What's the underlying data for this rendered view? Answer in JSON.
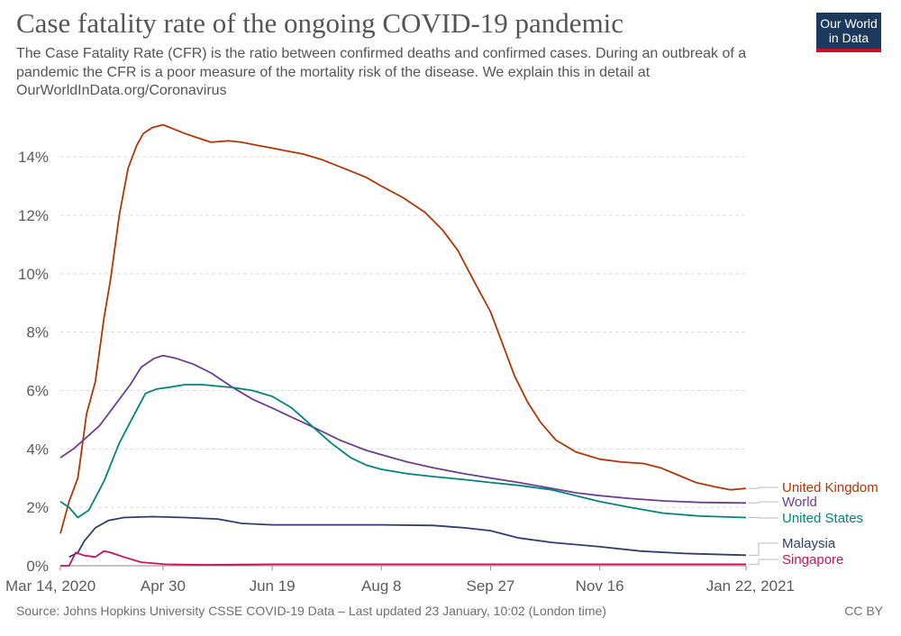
{
  "header": {
    "title": "Case fatality rate of the ongoing COVID-19 pandemic",
    "subtitle": "The Case Fatality Rate (CFR) is the ratio between confirmed deaths and confirmed cases. During an outbreak of a pandemic the CFR is a poor measure of the mortality risk of the disease. We explain this in detail at OurWorldInData.org/Coronavirus",
    "logo_line1": "Our World",
    "logo_line2": "in Data"
  },
  "footer": {
    "source": "Source: Johns Hopkins University CSSE COVID-19 Data – Last updated 23 January, 10:02 (London time)",
    "license": "CC BY"
  },
  "colors": {
    "uk": "#b13507",
    "world": "#6d3e91",
    "us": "#00847e",
    "malaysia": "#2d3e6b",
    "singapore": "#c4145f",
    "grid": "#dddddd",
    "logo_bg": "#1b3a5e",
    "logo_accent": "#c8102e"
  },
  "chart_data": {
    "type": "line",
    "x_start": "2020-03-14",
    "x_end": "2021-01-22",
    "x_ticks": [
      {
        "date": "2020-03-14",
        "label": "Mar 14, 2020"
      },
      {
        "date": "2020-04-30",
        "label": "Apr 30"
      },
      {
        "date": "2020-06-19",
        "label": "Jun 19"
      },
      {
        "date": "2020-08-08",
        "label": "Aug 8"
      },
      {
        "date": "2020-09-27",
        "label": "Sep 27"
      },
      {
        "date": "2020-11-16",
        "label": "Nov 16"
      },
      {
        "date": "2021-01-22",
        "label": "Jan 22, 2021"
      }
    ],
    "y_ticks": [
      {
        "value": 0,
        "label": "0%"
      },
      {
        "value": 2,
        "label": "2%"
      },
      {
        "value": 4,
        "label": "4%"
      },
      {
        "value": 6,
        "label": "6%"
      },
      {
        "value": 8,
        "label": "8%"
      },
      {
        "value": 10,
        "label": "10%"
      },
      {
        "value": 12,
        "label": "12%"
      },
      {
        "value": 14,
        "label": "14%"
      }
    ],
    "ylim": [
      0,
      15.3
    ],
    "grid": true,
    "series": [
      {
        "key": "uk",
        "name": "United Kingdom",
        "color": "#b13507",
        "points": [
          [
            "2020-03-14",
            1.1
          ],
          [
            "2020-03-18",
            2.2
          ],
          [
            "2020-03-22",
            3.0
          ],
          [
            "2020-03-26",
            5.2
          ],
          [
            "2020-03-30",
            6.3
          ],
          [
            "2020-04-03",
            8.5
          ],
          [
            "2020-04-06",
            9.8
          ],
          [
            "2020-04-10",
            12.0
          ],
          [
            "2020-04-14",
            13.6
          ],
          [
            "2020-04-18",
            14.4
          ],
          [
            "2020-04-21",
            14.8
          ],
          [
            "2020-04-25",
            15.0
          ],
          [
            "2020-04-30",
            15.1
          ],
          [
            "2020-05-05",
            14.95
          ],
          [
            "2020-05-10",
            14.8
          ],
          [
            "2020-05-16",
            14.65
          ],
          [
            "2020-05-22",
            14.5
          ],
          [
            "2020-05-30",
            14.55
          ],
          [
            "2020-06-05",
            14.5
          ],
          [
            "2020-06-12",
            14.4
          ],
          [
            "2020-06-19",
            14.3
          ],
          [
            "2020-06-26",
            14.2
          ],
          [
            "2020-07-03",
            14.1
          ],
          [
            "2020-07-12",
            13.9
          ],
          [
            "2020-07-22",
            13.6
          ],
          [
            "2020-08-01",
            13.3
          ],
          [
            "2020-08-08",
            13.0
          ],
          [
            "2020-08-18",
            12.6
          ],
          [
            "2020-08-28",
            12.1
          ],
          [
            "2020-09-05",
            11.5
          ],
          [
            "2020-09-12",
            10.8
          ],
          [
            "2020-09-19",
            9.8
          ],
          [
            "2020-09-27",
            8.7
          ],
          [
            "2020-10-03",
            7.5
          ],
          [
            "2020-10-08",
            6.5
          ],
          [
            "2020-10-14",
            5.6
          ],
          [
            "2020-10-20",
            4.9
          ],
          [
            "2020-10-27",
            4.3
          ],
          [
            "2020-11-05",
            3.9
          ],
          [
            "2020-11-16",
            3.65
          ],
          [
            "2020-11-26",
            3.55
          ],
          [
            "2020-12-06",
            3.5
          ],
          [
            "2020-12-14",
            3.35
          ],
          [
            "2020-12-22",
            3.1
          ],
          [
            "2020-12-30",
            2.85
          ],
          [
            "2021-01-08",
            2.7
          ],
          [
            "2021-01-15",
            2.6
          ],
          [
            "2021-01-22",
            2.65
          ]
        ]
      },
      {
        "key": "world",
        "name": "World",
        "color": "#6d3e91",
        "points": [
          [
            "2020-03-14",
            3.7
          ],
          [
            "2020-03-20",
            4.0
          ],
          [
            "2020-03-26",
            4.4
          ],
          [
            "2020-04-01",
            4.8
          ],
          [
            "2020-04-08",
            5.5
          ],
          [
            "2020-04-15",
            6.2
          ],
          [
            "2020-04-20",
            6.8
          ],
          [
            "2020-04-26",
            7.1
          ],
          [
            "2020-04-30",
            7.2
          ],
          [
            "2020-05-06",
            7.1
          ],
          [
            "2020-05-14",
            6.9
          ],
          [
            "2020-05-22",
            6.6
          ],
          [
            "2020-06-01",
            6.1
          ],
          [
            "2020-06-10",
            5.7
          ],
          [
            "2020-06-19",
            5.4
          ],
          [
            "2020-06-29",
            5.05
          ],
          [
            "2020-07-09",
            4.7
          ],
          [
            "2020-07-20",
            4.3
          ],
          [
            "2020-08-01",
            3.95
          ],
          [
            "2020-08-08",
            3.8
          ],
          [
            "2020-08-20",
            3.55
          ],
          [
            "2020-09-01",
            3.35
          ],
          [
            "2020-09-15",
            3.15
          ],
          [
            "2020-09-27",
            3.0
          ],
          [
            "2020-10-10",
            2.85
          ],
          [
            "2020-10-25",
            2.65
          ],
          [
            "2020-11-05",
            2.5
          ],
          [
            "2020-11-16",
            2.4
          ],
          [
            "2020-11-30",
            2.3
          ],
          [
            "2020-12-15",
            2.22
          ],
          [
            "2021-01-01",
            2.17
          ],
          [
            "2021-01-22",
            2.15
          ]
        ]
      },
      {
        "key": "us",
        "name": "United States",
        "color": "#00847e",
        "points": [
          [
            "2020-03-14",
            2.2
          ],
          [
            "2020-03-18",
            2.0
          ],
          [
            "2020-03-22",
            1.65
          ],
          [
            "2020-03-27",
            1.9
          ],
          [
            "2020-04-03",
            2.9
          ],
          [
            "2020-04-10",
            4.2
          ],
          [
            "2020-04-17",
            5.2
          ],
          [
            "2020-04-22",
            5.9
          ],
          [
            "2020-04-27",
            6.05
          ],
          [
            "2020-05-02",
            6.1
          ],
          [
            "2020-05-10",
            6.2
          ],
          [
            "2020-05-18",
            6.2
          ],
          [
            "2020-05-25",
            6.15
          ],
          [
            "2020-06-01",
            6.1
          ],
          [
            "2020-06-10",
            6.0
          ],
          [
            "2020-06-19",
            5.8
          ],
          [
            "2020-06-28",
            5.4
          ],
          [
            "2020-07-07",
            4.8
          ],
          [
            "2020-07-16",
            4.2
          ],
          [
            "2020-07-25",
            3.7
          ],
          [
            "2020-08-01",
            3.45
          ],
          [
            "2020-08-08",
            3.3
          ],
          [
            "2020-08-20",
            3.15
          ],
          [
            "2020-09-01",
            3.05
          ],
          [
            "2020-09-15",
            2.95
          ],
          [
            "2020-09-27",
            2.85
          ],
          [
            "2020-10-10",
            2.75
          ],
          [
            "2020-10-25",
            2.6
          ],
          [
            "2020-11-05",
            2.4
          ],
          [
            "2020-11-16",
            2.2
          ],
          [
            "2020-11-30",
            2.0
          ],
          [
            "2020-12-15",
            1.8
          ],
          [
            "2021-01-01",
            1.7
          ],
          [
            "2021-01-22",
            1.65
          ]
        ]
      },
      {
        "key": "malaysia",
        "name": "Malaysia",
        "color": "#2d3e6b",
        "points": [
          [
            "2020-03-18",
            0.3
          ],
          [
            "2020-03-22",
            0.45
          ],
          [
            "2020-03-25",
            0.85
          ],
          [
            "2020-03-30",
            1.3
          ],
          [
            "2020-04-05",
            1.55
          ],
          [
            "2020-04-12",
            1.65
          ],
          [
            "2020-04-25",
            1.68
          ],
          [
            "2020-05-10",
            1.65
          ],
          [
            "2020-05-25",
            1.6
          ],
          [
            "2020-06-05",
            1.45
          ],
          [
            "2020-06-19",
            1.4
          ],
          [
            "2020-07-10",
            1.4
          ],
          [
            "2020-08-08",
            1.4
          ],
          [
            "2020-09-01",
            1.38
          ],
          [
            "2020-09-15",
            1.3
          ],
          [
            "2020-09-27",
            1.2
          ],
          [
            "2020-10-10",
            0.95
          ],
          [
            "2020-10-25",
            0.8
          ],
          [
            "2020-11-16",
            0.65
          ],
          [
            "2020-12-05",
            0.5
          ],
          [
            "2020-12-25",
            0.42
          ],
          [
            "2021-01-22",
            0.36
          ]
        ]
      },
      {
        "key": "singapore",
        "name": "Singapore",
        "color": "#c4145f",
        "points": [
          [
            "2020-03-14",
            0.0
          ],
          [
            "2020-03-18",
            0.0
          ],
          [
            "2020-03-21",
            0.45
          ],
          [
            "2020-03-25",
            0.35
          ],
          [
            "2020-03-30",
            0.3
          ],
          [
            "2020-04-03",
            0.5
          ],
          [
            "2020-04-06",
            0.45
          ],
          [
            "2020-04-12",
            0.3
          ],
          [
            "2020-04-20",
            0.12
          ],
          [
            "2020-05-01",
            0.05
          ],
          [
            "2020-05-20",
            0.03
          ],
          [
            "2020-06-19",
            0.05
          ],
          [
            "2020-08-08",
            0.05
          ],
          [
            "2020-09-27",
            0.05
          ],
          [
            "2020-11-16",
            0.05
          ],
          [
            "2021-01-22",
            0.05
          ]
        ]
      }
    ]
  }
}
